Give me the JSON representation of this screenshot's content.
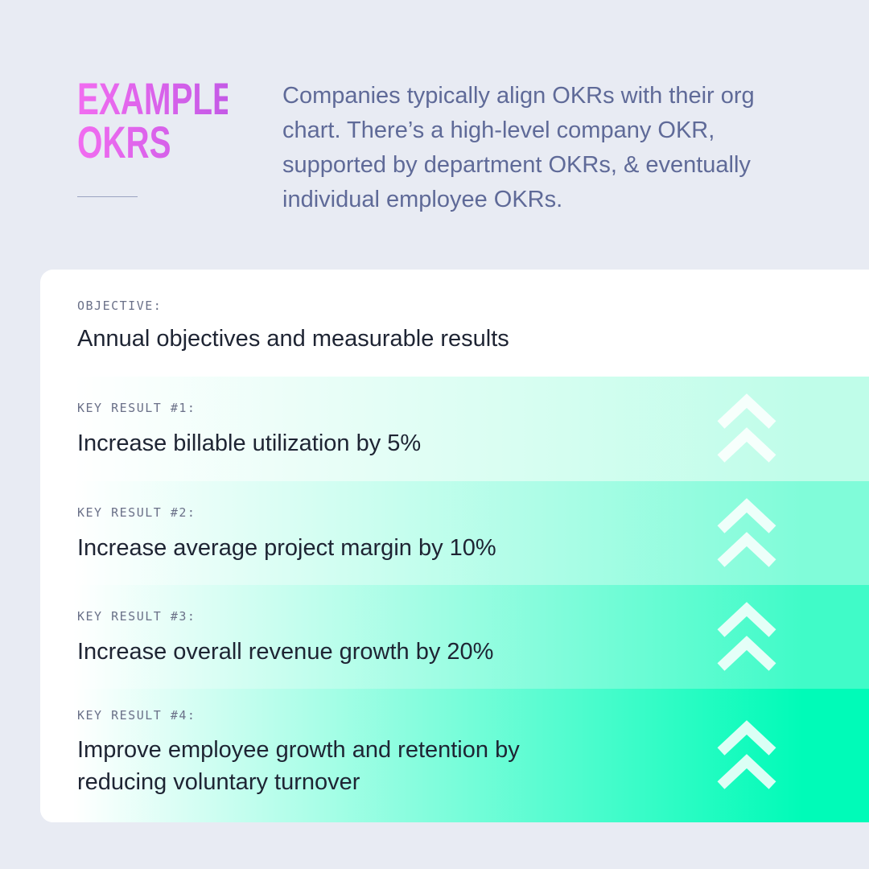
{
  "header": {
    "title_lines": [
      "EXAMPLE",
      "OKRS"
    ],
    "description": "Companies typically align OKRs with their org chart. There’s a high-level company OKR, supported by department OKRs, & eventually individual employee OKRs."
  },
  "objective": {
    "label": "OBJECTIVE:",
    "text": "Annual objectives and measurable results"
  },
  "key_results": [
    {
      "label": "KEY RESULT #1:",
      "text": "Increase billable utilization by 5%"
    },
    {
      "label": "KEY RESULT #2:",
      "text": "Increase average project margin by 10%"
    },
    {
      "label": "KEY RESULT #3:",
      "text": "Increase overall revenue growth by 20%"
    },
    {
      "label": "KEY RESULT #4:",
      "text": "Improve employee growth and retention by reducing voluntary turnover"
    }
  ]
}
